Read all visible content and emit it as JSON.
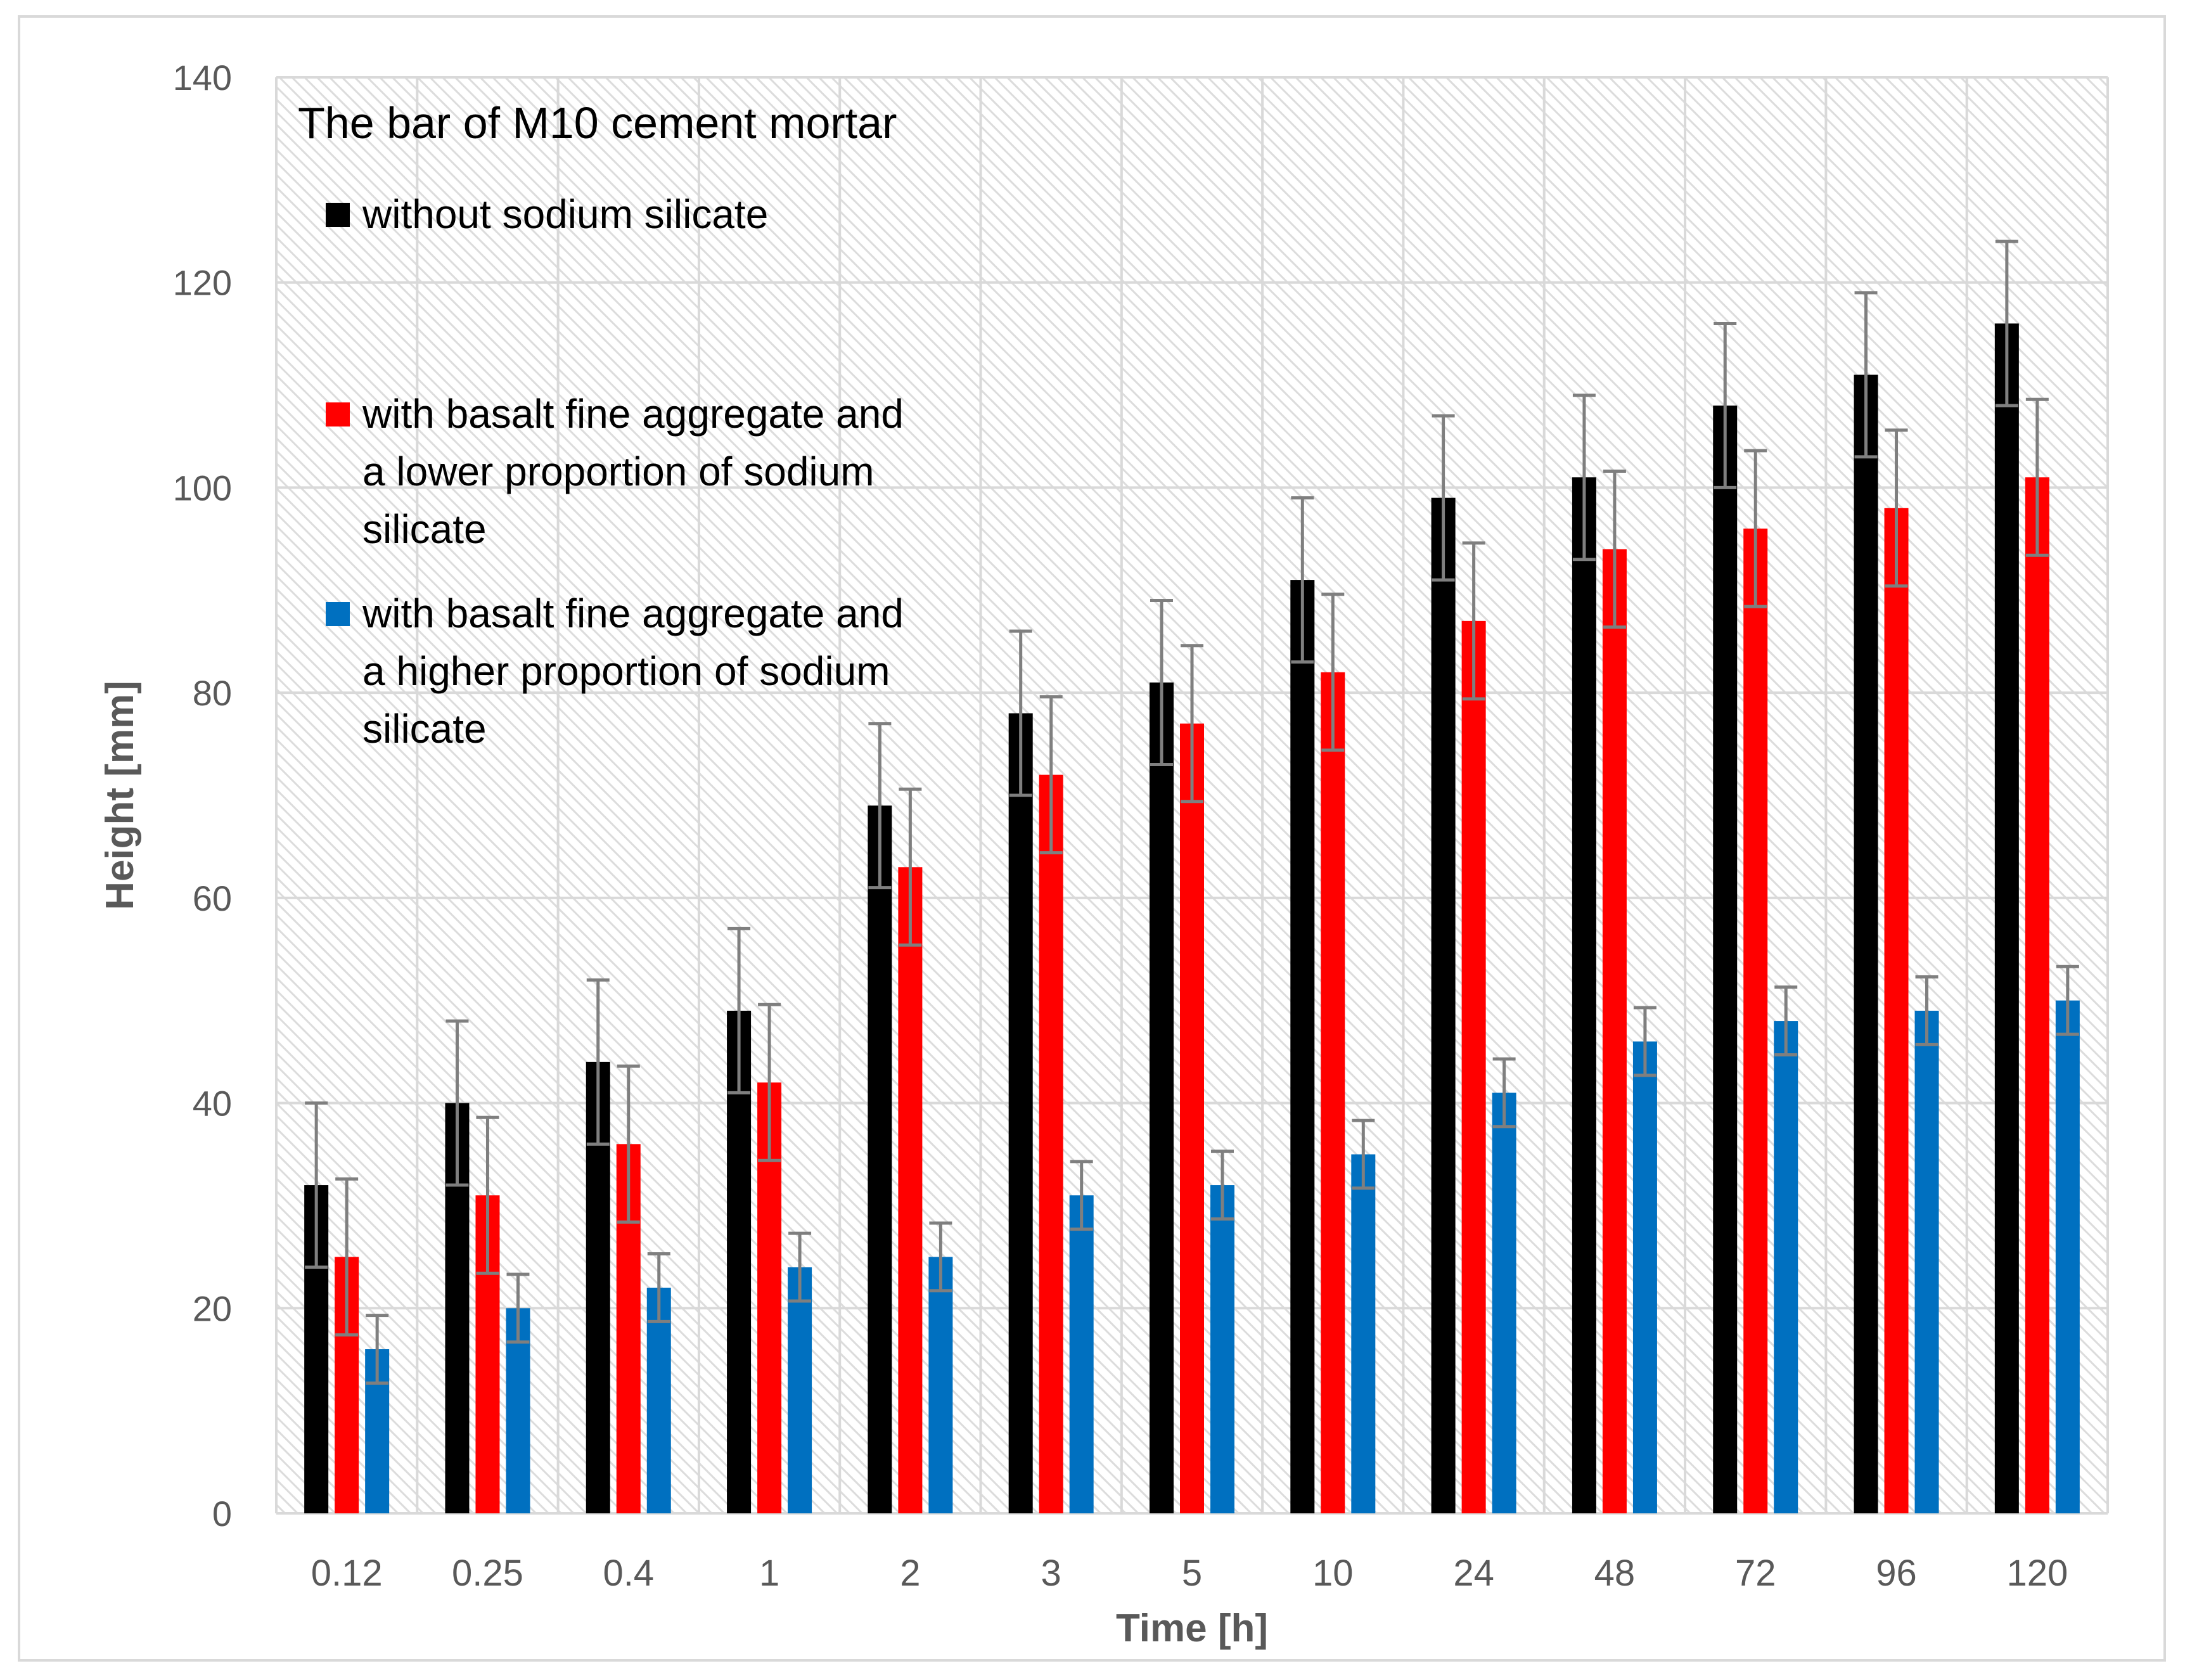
{
  "chart_data": {
    "type": "bar",
    "title": "The bar of M10 cement mortar",
    "xlabel": "Time [h]",
    "ylabel": "Height [mm]",
    "ylim": [
      0,
      140
    ],
    "yticks": [
      0,
      20,
      40,
      60,
      80,
      100,
      120,
      140
    ],
    "grid": true,
    "legend_position": "top-left",
    "categories": [
      "0.12",
      "0.25",
      "0.4",
      "1",
      "2",
      "3",
      "5",
      "10",
      "24",
      "48",
      "72",
      "96",
      "120"
    ],
    "series": [
      {
        "name": "without sodium silicate",
        "legend_lines": [
          "without sodium silicate"
        ],
        "color": "#000000",
        "values": [
          32,
          40,
          44,
          49,
          69,
          78,
          81,
          91,
          99,
          101,
          108,
          111,
          116
        ],
        "errors": [
          8,
          8,
          8,
          8,
          8,
          8,
          8,
          8,
          8,
          8,
          8,
          8,
          8
        ]
      },
      {
        "name": "with basalt fine aggregate and a lower proportion of sodium silicate",
        "legend_lines": [
          "with basalt fine aggregate and",
          "a lower proportion of sodium",
          "silicate"
        ],
        "color": "#ff0000",
        "values": [
          25,
          31,
          36,
          42,
          63,
          72,
          77,
          82,
          87,
          94,
          96,
          98,
          101
        ],
        "errors": [
          7.6,
          7.6,
          7.6,
          7.6,
          7.6,
          7.6,
          7.6,
          7.6,
          7.6,
          7.6,
          7.6,
          7.6,
          7.6
        ]
      },
      {
        "name": "with basalt fine aggregate and a higher proportion of sodium silicate",
        "legend_lines": [
          "with basalt fine aggregate and",
          "a higher proportion of sodium",
          "silicate"
        ],
        "color": "#0070c0",
        "values": [
          16,
          20,
          22,
          24,
          25,
          31,
          32,
          35,
          41,
          46,
          48,
          49,
          50
        ],
        "errors": [
          3.3,
          3.3,
          3.3,
          3.3,
          3.3,
          3.3,
          3.3,
          3.3,
          3.3,
          3.3,
          3.3,
          3.3,
          3.3
        ]
      }
    ],
    "colors": {
      "grid": "#d9d9d9",
      "error_bar": "#7f7f7f",
      "axis_text": "#595959"
    }
  }
}
